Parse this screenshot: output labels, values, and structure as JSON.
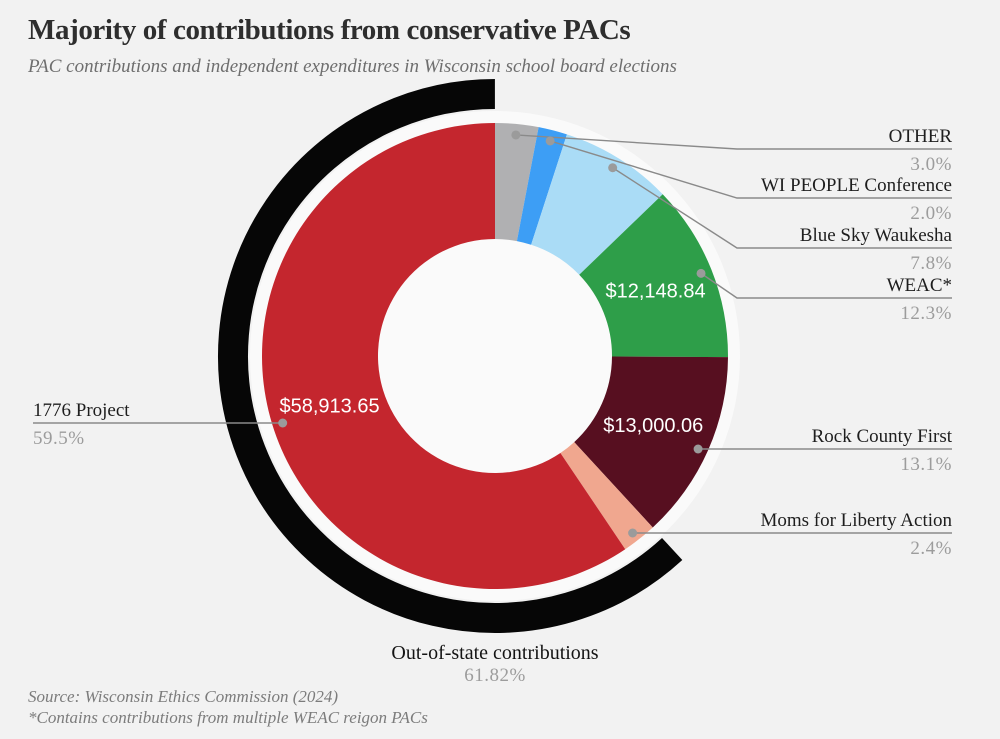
{
  "header": {
    "title": "Majority of contributions from conservative PACs",
    "subtitle": "PAC contributions and independent expenditures in Wisconsin school board elections"
  },
  "footer": {
    "source": "Source: Wisconsin Ethics Commission (2024)",
    "note": "*Contains contributions from multiple WEAC reigon PACs"
  },
  "chart_data": {
    "type": "pie",
    "subtype": "donut",
    "title": "Majority of contributions from conservative PACs",
    "subtitle": "PAC contributions and independent expenditures in Wisconsin school board elections",
    "start_angle": "top",
    "direction": "clockwise",
    "legend_position": "callout-labels",
    "slices": [
      {
        "name": "OTHER",
        "pct": 3.0,
        "pct_label": "3.0%",
        "value_label": null,
        "color": "#b0b0b2"
      },
      {
        "name": "WI PEOPLE Conference",
        "pct": 2.0,
        "pct_label": "2.0%",
        "value_label": null,
        "color": "#3d9ef5"
      },
      {
        "name": "Blue Sky Waukesha",
        "pct": 7.8,
        "pct_label": "7.8%",
        "value_label": null,
        "color": "#aadcf6"
      },
      {
        "name": "WEAC*",
        "pct": 12.3,
        "pct_label": "12.3%",
        "value_label": "$12,148.84",
        "color": "#2e9e49"
      },
      {
        "name": "Rock County First",
        "pct": 13.1,
        "pct_label": "13.1%",
        "value_label": "$13,000.06",
        "color": "#570f20"
      },
      {
        "name": "Moms for Liberty Action",
        "pct": 2.4,
        "pct_label": "2.4%",
        "value_label": null,
        "color": "#f0a78f"
      },
      {
        "name": "1776 Project",
        "pct": 59.5,
        "pct_label": "59.5%",
        "value_label": "$58,913.65",
        "color": "#c4262e"
      }
    ],
    "outer_arc": {
      "label": "Out-of-state contributions",
      "pct": 61.82,
      "pct_label": "61.82%",
      "color": "#060606"
    },
    "colors": {
      "background": "#f2f2f2",
      "chart_backing": "#fafafa",
      "leader_line": "#8a8a8a",
      "leader_dot": "#9b9b9b",
      "value_label_text": "#ffffff"
    }
  }
}
